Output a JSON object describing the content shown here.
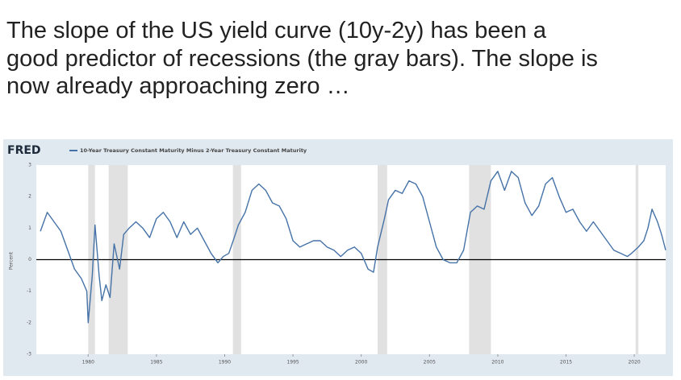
{
  "slide": {
    "title": [
      "The slope of the US yield curve (10y-2y) has been a",
      "good predictor of recessions (the gray bars). The slope is",
      "now already approaching zero …"
    ]
  },
  "chart_data": {
    "type": "line",
    "source": "FRED",
    "ylabel": "Percent",
    "x": [
      1976.5,
      1977.0,
      1977.5,
      1978.0,
      1978.5,
      1979.0,
      1979.5,
      1979.9,
      1980.0,
      1980.3,
      1980.5,
      1980.8,
      1981.0,
      1981.3,
      1981.6,
      1981.9,
      1982.3,
      1982.6,
      1983.0,
      1983.5,
      1984.0,
      1984.5,
      1985.0,
      1985.5,
      1986.0,
      1986.5,
      1987.0,
      1987.5,
      1988.0,
      1988.5,
      1989.0,
      1989.5,
      1989.9,
      1990.3,
      1990.7,
      1991.0,
      1991.5,
      1992.0,
      1992.5,
      1993.0,
      1993.5,
      1994.0,
      1994.5,
      1995.0,
      1995.5,
      1996.0,
      1996.5,
      1997.0,
      1997.5,
      1998.0,
      1998.5,
      1999.0,
      1999.5,
      2000.0,
      2000.5,
      2000.9,
      2001.2,
      2001.7,
      2002.0,
      2002.5,
      2003.0,
      2003.5,
      2004.0,
      2004.5,
      2005.0,
      2005.5,
      2006.0,
      2006.5,
      2007.0,
      2007.5,
      2008.0,
      2008.5,
      2009.0,
      2009.5,
      2010.0,
      2010.5,
      2011.0,
      2011.5,
      2012.0,
      2012.5,
      2013.0,
      2013.5,
      2014.0,
      2014.5,
      2015.0,
      2015.5,
      2016.0,
      2016.5,
      2017.0,
      2017.5,
      2018.0,
      2018.5,
      2019.0,
      2019.5,
      2019.8,
      2020.3,
      2020.7,
      2021.0,
      2021.3,
      2021.7,
      2022.0,
      2022.3
    ],
    "series": [
      {
        "name": "10-Year Treasury Constant Maturity Minus 2-Year Treasury Constant Maturity",
        "color": "#4572a7",
        "values": [
          0.9,
          1.5,
          1.2,
          0.9,
          0.3,
          -0.3,
          -0.6,
          -1.0,
          -2.0,
          -0.5,
          1.1,
          -0.5,
          -1.3,
          -0.8,
          -1.2,
          0.5,
          -0.3,
          0.8,
          1.0,
          1.2,
          1.0,
          0.7,
          1.3,
          1.5,
          1.2,
          0.7,
          1.2,
          0.8,
          1.0,
          0.6,
          0.2,
          -0.1,
          0.1,
          0.2,
          0.7,
          1.1,
          1.5,
          2.2,
          2.4,
          2.2,
          1.8,
          1.7,
          1.3,
          0.6,
          0.4,
          0.5,
          0.6,
          0.6,
          0.4,
          0.3,
          0.1,
          0.3,
          0.4,
          0.2,
          -0.3,
          -0.4,
          0.4,
          1.3,
          1.9,
          2.2,
          2.1,
          2.5,
          2.4,
          2.0,
          1.2,
          0.4,
          0.0,
          -0.1,
          -0.1,
          0.3,
          1.5,
          1.7,
          1.6,
          2.5,
          2.8,
          2.2,
          2.8,
          2.6,
          1.8,
          1.4,
          1.7,
          2.4,
          2.6,
          2.0,
          1.5,
          1.6,
          1.2,
          0.9,
          1.2,
          0.9,
          0.6,
          0.3,
          0.2,
          0.1,
          0.2,
          0.4,
          0.6,
          1.0,
          1.6,
          1.2,
          0.8,
          0.3
        ]
      }
    ],
    "recessions": [
      [
        1980.0,
        1980.5
      ],
      [
        1981.5,
        1982.9
      ],
      [
        1990.6,
        1991.2
      ],
      [
        2001.2,
        2001.9
      ],
      [
        2007.9,
        2009.5
      ],
      [
        2020.1,
        2020.3
      ]
    ],
    "recession_color": "#e1e1e1",
    "xlim": [
      1976.2,
      2022.3
    ],
    "xticks": [
      1980,
      1985,
      1990,
      1995,
      2000,
      2005,
      2010,
      2015,
      2020
    ],
    "ylim": [
      -3,
      3
    ],
    "yticks": [
      -3,
      -2,
      -1,
      0,
      1,
      2,
      3
    ],
    "zero_line": true,
    "grid": false
  }
}
